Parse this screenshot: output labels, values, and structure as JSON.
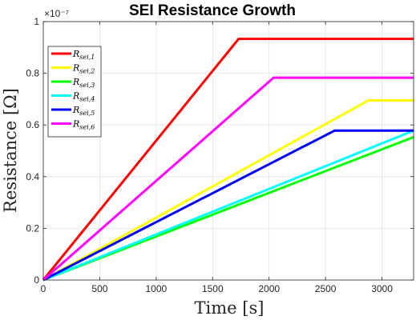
{
  "chart_data": {
    "type": "line",
    "title": "SEI Resistance Growth",
    "xlabel": "Time [s]",
    "ylabel": "Resistance [Ω]",
    "y_exponent_label": "×10⁻⁷",
    "xlim": [
      0,
      3280
    ],
    "ylim": [
      0,
      1.0
    ],
    "x_ticks": [
      0,
      500,
      1000,
      1500,
      2000,
      2500,
      3000
    ],
    "y_ticks": [
      0,
      0.2,
      0.4,
      0.6,
      0.8,
      1
    ],
    "y_tick_labels": [
      "0",
      "0.2",
      "0.4",
      "0.6",
      "0.8",
      "1"
    ],
    "grid": true,
    "legend_position": "top-left",
    "series": [
      {
        "name": "R",
        "sub": "sei,1",
        "color": "#ff0000",
        "x": [
          0,
          1730,
          3280
        ],
        "y": [
          0,
          0.933,
          0.933
        ]
      },
      {
        "name": "R",
        "sub": "sei,2",
        "color": "#ffff00",
        "x": [
          0,
          2880,
          3280
        ],
        "y": [
          0,
          0.695,
          0.695
        ]
      },
      {
        "name": "R",
        "sub": "sei,3",
        "color": "#00ff00",
        "x": [
          0,
          3280
        ],
        "y": [
          0,
          0.553
        ]
      },
      {
        "name": "R",
        "sub": "sei,4",
        "color": "#00ffff",
        "x": [
          0,
          3280
        ],
        "y": [
          0,
          0.578
        ]
      },
      {
        "name": "R",
        "sub": "sei,5",
        "color": "#0000ff",
        "x": [
          0,
          2580,
          3280
        ],
        "y": [
          0,
          0.578,
          0.578
        ]
      },
      {
        "name": "R",
        "sub": "sei,6",
        "color": "#ff00ff",
        "x": [
          0,
          2040,
          3280
        ],
        "y": [
          0,
          0.783,
          0.783
        ]
      }
    ]
  }
}
